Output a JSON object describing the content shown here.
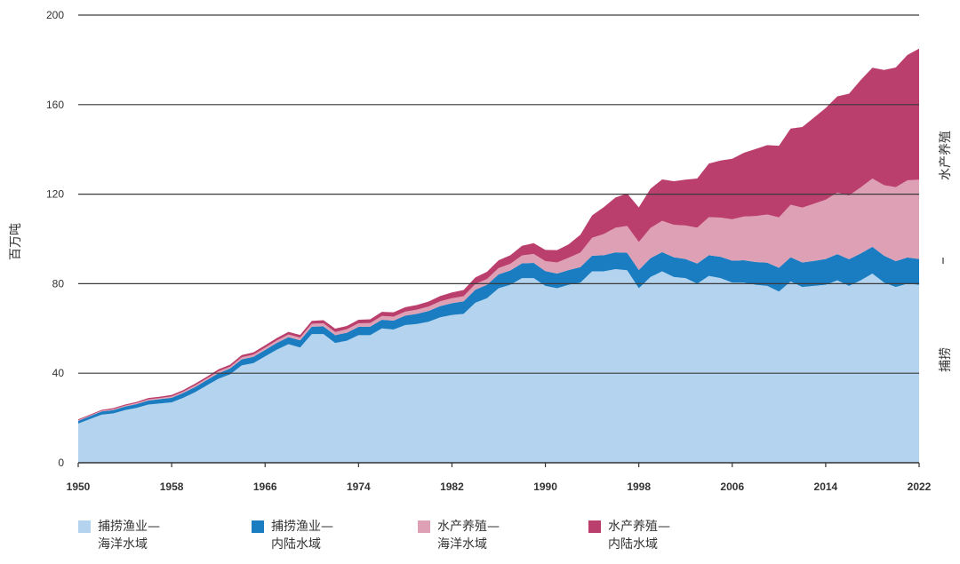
{
  "chart_data": {
    "type": "area",
    "stacked": true,
    "title": "",
    "xlabel": "",
    "ylabel": "百万吨",
    "xlim": [
      1950,
      2022
    ],
    "ylim": [
      0,
      200
    ],
    "yticks": [
      0,
      40,
      80,
      120,
      160,
      200
    ],
    "xticks": [
      1950,
      1958,
      1966,
      1974,
      1982,
      1990,
      1998,
      2006,
      2014,
      2022
    ],
    "grid": true,
    "legend_position": "bottom",
    "side_labels": {
      "upper": "水产养殖",
      "lower": "捕捞"
    },
    "x": [
      1950,
      1951,
      1952,
      1953,
      1954,
      1955,
      1956,
      1957,
      1958,
      1959,
      1960,
      1961,
      1962,
      1963,
      1964,
      1965,
      1966,
      1967,
      1968,
      1969,
      1970,
      1971,
      1972,
      1973,
      1974,
      1975,
      1976,
      1977,
      1978,
      1979,
      1980,
      1981,
      1982,
      1983,
      1984,
      1985,
      1986,
      1987,
      1988,
      1989,
      1990,
      1991,
      1992,
      1993,
      1994,
      1995,
      1996,
      1997,
      1998,
      1999,
      2000,
      2001,
      2002,
      2003,
      2004,
      2005,
      2006,
      2007,
      2008,
      2009,
      2010,
      2011,
      2012,
      2013,
      2014,
      2015,
      2016,
      2017,
      2018,
      2019,
      2020,
      2021,
      2022
    ],
    "series": [
      {
        "name": "捕捞渔业—海洋水域",
        "color": "#b3d3ee",
        "values": [
          17.5,
          19.5,
          21.5,
          22.0,
          23.5,
          24.5,
          26.0,
          26.5,
          27.0,
          29.0,
          31.5,
          34.5,
          37.5,
          39.5,
          43.5,
          44.5,
          47.5,
          50.5,
          53.0,
          51.5,
          57.5,
          57.5,
          53.5,
          54.5,
          57.0,
          57.0,
          60.0,
          59.5,
          61.5,
          62.0,
          63.0,
          65.0,
          66.0,
          66.5,
          71.5,
          73.5,
          78.0,
          79.5,
          82.5,
          82.5,
          79.0,
          78.0,
          79.5,
          80.5,
          85.5,
          85.5,
          86.5,
          86.0,
          78.0,
          83.0,
          85.5,
          83.0,
          82.5,
          80.0,
          83.5,
          82.5,
          80.5,
          80.5,
          79.5,
          79.0,
          76.5,
          81.0,
          78.5,
          79.0,
          79.5,
          81.5,
          79.0,
          81.5,
          84.5,
          80.5,
          78.5,
          80.0,
          79.5
        ]
      },
      {
        "name": "捕捞渔业—内陆水域",
        "color": "#1a7dc2",
        "values": [
          1.2,
          1.3,
          1.4,
          1.5,
          1.6,
          1.7,
          1.8,
          1.9,
          2.0,
          2.2,
          2.3,
          2.4,
          2.5,
          2.6,
          2.7,
          2.8,
          2.9,
          3.0,
          3.1,
          3.2,
          3.3,
          3.4,
          3.5,
          3.6,
          3.7,
          3.8,
          3.9,
          4.0,
          4.2,
          4.5,
          4.8,
          5.0,
          5.3,
          5.6,
          5.8,
          6.0,
          6.2,
          6.4,
          6.6,
          6.8,
          6.6,
          6.5,
          6.6,
          6.9,
          7.0,
          7.2,
          7.5,
          7.8,
          8.1,
          8.4,
          8.6,
          8.8,
          8.5,
          9.0,
          9.2,
          9.5,
          9.8,
          10.0,
          10.2,
          10.4,
          10.6,
          10.8,
          11.0,
          11.2,
          11.5,
          11.7,
          11.9,
          12.0,
          12.0,
          12.0,
          11.6,
          11.7,
          11.5
        ]
      },
      {
        "name": "水产养殖—海洋水域",
        "color": "#dea0b4",
        "values": [
          0.3,
          0.3,
          0.3,
          0.4,
          0.4,
          0.5,
          0.5,
          0.5,
          0.6,
          0.6,
          0.7,
          0.7,
          0.8,
          0.8,
          0.9,
          1.0,
          1.0,
          1.1,
          1.2,
          1.2,
          1.3,
          1.4,
          1.4,
          1.5,
          1.6,
          1.6,
          1.7,
          1.8,
          1.8,
          1.9,
          2.0,
          2.1,
          2.2,
          2.3,
          2.5,
          2.6,
          2.8,
          3.0,
          3.5,
          4.0,
          4.5,
          5.0,
          5.5,
          6.5,
          8.0,
          9.5,
          11.0,
          12.0,
          12.5,
          13.5,
          14.0,
          14.5,
          15.0,
          16.0,
          17.0,
          17.5,
          18.5,
          19.5,
          20.5,
          21.5,
          22.5,
          23.5,
          24.5,
          25.5,
          26.5,
          27.5,
          28.5,
          29.5,
          30.5,
          31.5,
          33.0,
          34.5,
          35.5
        ]
      },
      {
        "name": "水产养殖—内陆水域",
        "color": "#bb3f6c",
        "values": [
          0.4,
          0.4,
          0.4,
          0.5,
          0.5,
          0.5,
          0.6,
          0.6,
          0.7,
          0.7,
          0.8,
          0.8,
          0.9,
          0.9,
          1.0,
          1.0,
          1.1,
          1.1,
          1.2,
          1.2,
          1.3,
          1.4,
          1.5,
          1.5,
          1.6,
          1.7,
          1.8,
          1.9,
          2.0,
          2.1,
          2.2,
          2.4,
          2.6,
          2.8,
          3.0,
          3.2,
          3.5,
          3.8,
          4.3,
          4.8,
          5.0,
          5.5,
          6.0,
          8.0,
          10.0,
          12.0,
          13.5,
          14.5,
          15.5,
          17.5,
          18.5,
          19.5,
          20.5,
          22.0,
          24.0,
          25.5,
          27.0,
          28.5,
          30.0,
          31.0,
          32.0,
          34.0,
          36.0,
          38.5,
          41.0,
          43.0,
          45.5,
          48.0,
          49.5,
          51.5,
          53.5,
          56.0,
          58.5
        ]
      }
    ]
  }
}
